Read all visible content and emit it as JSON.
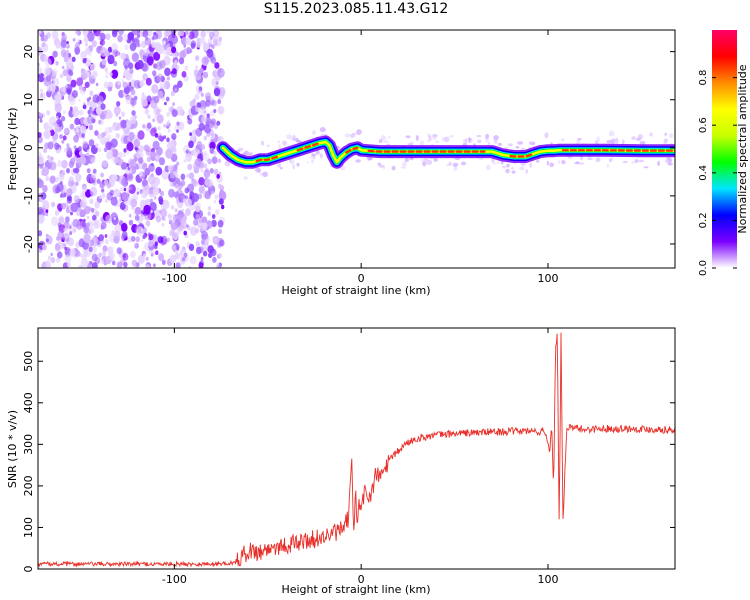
{
  "title": "S115.2023.085.11.43.G12",
  "chart_data": [
    {
      "type": "heatmap",
      "xlabel": "Height of straight line (km)",
      "ylabel": "Frequency (Hz)",
      "xlim": [
        -173,
        168
      ],
      "ylim": [
        -25,
        24.5
      ],
      "x_ticks": [
        "-100",
        "0",
        "100"
      ],
      "y_ticks": [
        "20",
        "10",
        "0",
        "-10",
        "-20"
      ],
      "noise_region_x": [
        -173,
        -74
      ],
      "ridge": {
        "x": [
          -74,
          -70,
          -66,
          -62,
          -58,
          -54,
          -50,
          -46,
          -42,
          -38,
          -34,
          -30,
          -26,
          -22,
          -19,
          -17,
          -15,
          -13,
          -11,
          -8,
          -5,
          -2,
          0,
          10,
          20,
          40,
          60,
          70,
          76,
          82,
          88,
          92,
          96,
          100,
          103,
          106,
          110,
          130,
          150,
          168
        ],
        "y": [
          0,
          -1.5,
          -2.5,
          -3,
          -3,
          -2.5,
          -2.5,
          -2,
          -1.5,
          -1,
          -0.5,
          0,
          0.5,
          1,
          1.2,
          0.5,
          -1.5,
          -3,
          -2,
          -1,
          -0.3,
          0,
          -0.5,
          -0.8,
          -0.8,
          -0.8,
          -0.8,
          -0.8,
          -1.5,
          -1.8,
          -1.8,
          -1.3,
          -0.8,
          -0.6,
          -0.6,
          -0.5,
          -0.5,
          -0.5,
          -0.6,
          -0.6
        ]
      },
      "colorbar": {
        "label": "Normalized spectral amplitude",
        "range": [
          0,
          1
        ],
        "ticks": [
          "0.0",
          "0.2",
          "0.4",
          "0.6",
          "0.8"
        ],
        "colors": [
          "#ffffff",
          "#7b00ff",
          "#0000ff",
          "#00e5ff",
          "#00ff00",
          "#c8ff00",
          "#ffff00",
          "#ff8c00",
          "#ff0000",
          "#ff0066"
        ]
      }
    },
    {
      "type": "line",
      "xlabel": "Height of straight line (km)",
      "ylabel": "SNR (10 * v/v)",
      "xlim": [
        -173,
        168
      ],
      "ylim": [
        0,
        580
      ],
      "x_ticks": [
        "-100",
        "0",
        "100"
      ],
      "y_ticks": [
        "0",
        "100",
        "200",
        "300",
        "400",
        "500"
      ],
      "color": "#e8302a",
      "series": [
        {
          "x": [
            -173,
            -150,
            -120,
            -100,
            -80,
            -68,
            -64,
            -60,
            -55,
            -50,
            -45,
            -40,
            -35,
            -30,
            -25,
            -20,
            -15,
            -10,
            -7,
            -5,
            -4,
            -3,
            -2,
            -1,
            0,
            2,
            5,
            8,
            10,
            15,
            20,
            25,
            30,
            40,
            50,
            60,
            70,
            80,
            90,
            98,
            100,
            101,
            102,
            103,
            104,
            105,
            106,
            107,
            108,
            110,
            120,
            130,
            140,
            150,
            160,
            168
          ],
          "y": [
            12,
            12,
            12,
            12,
            12,
            15,
            30,
            45,
            40,
            48,
            55,
            58,
            62,
            68,
            72,
            78,
            85,
            95,
            120,
            250,
            90,
            180,
            110,
            160,
            140,
            190,
            170,
            230,
            220,
            260,
            285,
            305,
            315,
            322,
            326,
            328,
            330,
            331,
            332,
            330,
            310,
            280,
            350,
            190,
            520,
            580,
            90,
            560,
            110,
            340,
            336,
            338,
            338,
            337,
            336,
            335
          ]
        }
      ]
    }
  ]
}
